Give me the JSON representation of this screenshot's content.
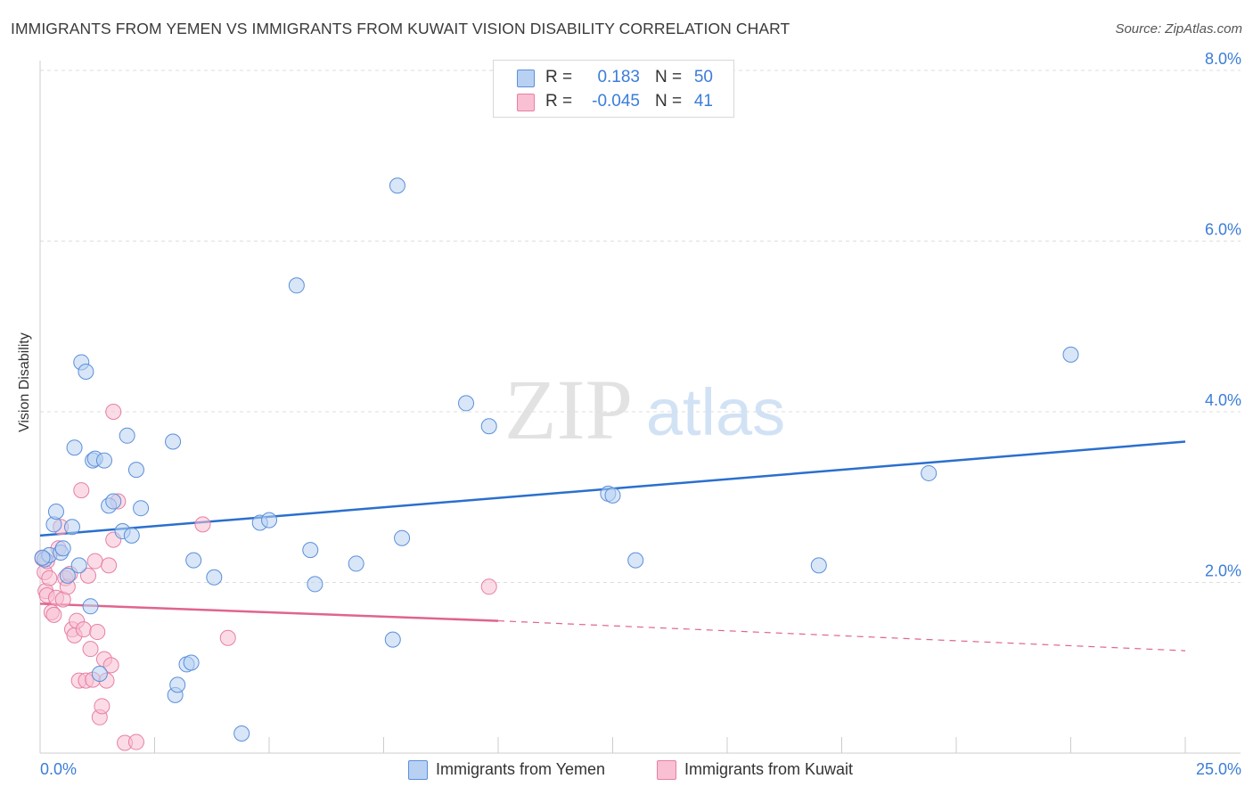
{
  "title": "IMMIGRANTS FROM YEMEN VS IMMIGRANTS FROM KUWAIT VISION DISABILITY CORRELATION CHART",
  "source": "Source: ZipAtlas.com",
  "watermark": {
    "zip": "ZIP",
    "atlas": "atlas"
  },
  "stats": {
    "row1": {
      "r_label": "R =",
      "r_value": "0.183",
      "n_label": "N =",
      "n_value": "50"
    },
    "row2": {
      "r_label": "R =",
      "r_value": "-0.045",
      "n_label": "N =",
      "n_value": "41"
    }
  },
  "legend": {
    "series1": "Immigrants from Yemen",
    "series2": "Immigrants from Kuwait"
  },
  "colors": {
    "blue_fill": "#b8d1f3",
    "blue_stroke": "#5b8fd9",
    "blue_line": "#2b6fce",
    "pink_fill": "#f8c0d2",
    "pink_stroke": "#e87fa3",
    "pink_line": "#e0648e",
    "axis_label": "#3b7dd8",
    "grid": "#dddddd"
  },
  "chart_data": {
    "type": "scatter",
    "title": "IMMIGRANTS FROM YEMEN VS IMMIGRANTS FROM KUWAIT VISION DISABILITY CORRELATION CHART",
    "xlabel": "",
    "ylabel": "Vision Disability",
    "xlim": [
      0,
      25
    ],
    "ylim": [
      0,
      8
    ],
    "x_tick_labels": [
      "0.0%",
      "25.0%"
    ],
    "y_ticks": [
      2,
      4,
      6,
      8
    ],
    "y_tick_labels": [
      "2.0%",
      "4.0%",
      "6.0%",
      "8.0%"
    ],
    "grid": true,
    "series": [
      {
        "name": "Immigrants from Yemen",
        "color": "blue",
        "points": [
          [
            0.1,
            2.27
          ],
          [
            0.2,
            2.32
          ],
          [
            0.3,
            2.68
          ],
          [
            0.35,
            2.83
          ],
          [
            0.45,
            2.35
          ],
          [
            0.5,
            2.4
          ],
          [
            0.6,
            2.08
          ],
          [
            0.7,
            2.65
          ],
          [
            0.75,
            3.58
          ],
          [
            0.85,
            2.2
          ],
          [
            0.9,
            4.58
          ],
          [
            1.0,
            4.47
          ],
          [
            1.1,
            1.72
          ],
          [
            1.15,
            3.43
          ],
          [
            1.2,
            3.45
          ],
          [
            1.3,
            0.93
          ],
          [
            1.4,
            3.43
          ],
          [
            1.5,
            2.9
          ],
          [
            1.6,
            2.95
          ],
          [
            1.8,
            2.6
          ],
          [
            1.9,
            3.72
          ],
          [
            2.0,
            2.55
          ],
          [
            2.1,
            3.32
          ],
          [
            2.2,
            2.87
          ],
          [
            2.9,
            3.65
          ],
          [
            2.95,
            0.68
          ],
          [
            3.0,
            0.8
          ],
          [
            3.2,
            1.04
          ],
          [
            3.3,
            1.06
          ],
          [
            3.35,
            2.26
          ],
          [
            3.8,
            2.06
          ],
          [
            4.4,
            0.23
          ],
          [
            4.8,
            2.7
          ],
          [
            5.0,
            2.73
          ],
          [
            5.6,
            5.48
          ],
          [
            5.9,
            2.38
          ],
          [
            6.0,
            1.98
          ],
          [
            6.9,
            2.22
          ],
          [
            7.7,
            1.33
          ],
          [
            7.8,
            6.65
          ],
          [
            7.9,
            2.52
          ],
          [
            9.3,
            4.1
          ],
          [
            9.8,
            3.83
          ],
          [
            12.4,
            3.04
          ],
          [
            12.5,
            3.02
          ],
          [
            13.0,
            2.26
          ],
          [
            17.0,
            2.2
          ],
          [
            19.4,
            3.28
          ],
          [
            22.5,
            4.67
          ],
          [
            0.05,
            2.29
          ]
        ]
      },
      {
        "name": "Immigrants from Kuwait",
        "color": "pink",
        "points": [
          [
            0.05,
            2.28
          ],
          [
            0.1,
            2.12
          ],
          [
            0.12,
            1.9
          ],
          [
            0.15,
            1.85
          ],
          [
            0.2,
            2.05
          ],
          [
            0.25,
            1.65
          ],
          [
            0.3,
            1.62
          ],
          [
            0.35,
            1.82
          ],
          [
            0.4,
            2.4
          ],
          [
            0.45,
            2.65
          ],
          [
            0.5,
            1.8
          ],
          [
            0.55,
            2.05
          ],
          [
            0.6,
            1.95
          ],
          [
            0.65,
            2.1
          ],
          [
            0.7,
            1.45
          ],
          [
            0.75,
            1.38
          ],
          [
            0.8,
            1.55
          ],
          [
            0.85,
            0.85
          ],
          [
            0.9,
            3.08
          ],
          [
            0.95,
            1.45
          ],
          [
            1.0,
            0.85
          ],
          [
            1.05,
            2.08
          ],
          [
            1.1,
            1.22
          ],
          [
            1.15,
            0.86
          ],
          [
            1.2,
            2.25
          ],
          [
            1.25,
            1.42
          ],
          [
            1.3,
            0.42
          ],
          [
            1.35,
            0.55
          ],
          [
            1.4,
            1.1
          ],
          [
            1.45,
            0.85
          ],
          [
            1.5,
            2.2
          ],
          [
            1.55,
            1.03
          ],
          [
            1.6,
            2.5
          ],
          [
            1.7,
            2.95
          ],
          [
            1.85,
            0.12
          ],
          [
            2.1,
            0.13
          ],
          [
            1.6,
            4.0
          ],
          [
            3.55,
            2.68
          ],
          [
            4.1,
            1.35
          ],
          [
            9.8,
            1.95
          ],
          [
            0.15,
            2.25
          ]
        ]
      }
    ],
    "trendlines": [
      {
        "series": "Immigrants from Yemen",
        "from": [
          0,
          2.55
        ],
        "to": [
          25,
          3.65
        ],
        "style": "solid"
      },
      {
        "series": "Immigrants from Kuwait",
        "from": [
          0,
          1.75
        ],
        "to": [
          10,
          1.55
        ],
        "style": "solid"
      },
      {
        "series": "Immigrants from Kuwait",
        "from": [
          10,
          1.55
        ],
        "to": [
          25,
          1.2
        ],
        "style": "dashed"
      }
    ]
  }
}
